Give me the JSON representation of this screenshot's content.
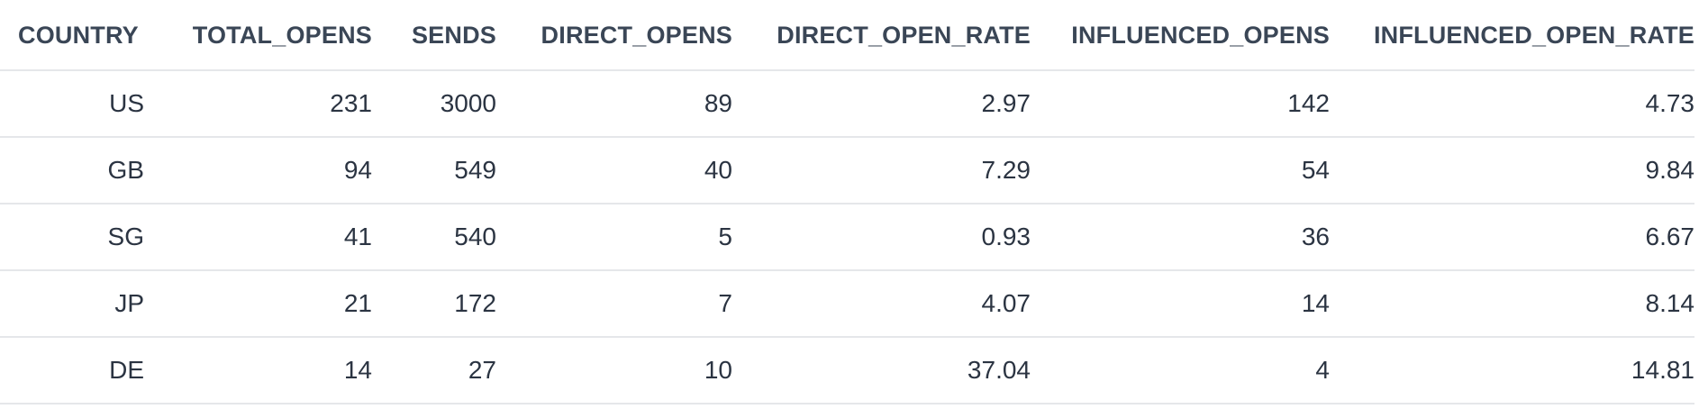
{
  "table": {
    "columns": [
      "COUNTRY",
      "TOTAL_OPENS",
      "SENDS",
      "DIRECT_OPENS",
      "DIRECT_OPEN_RATE",
      "INFLUENCED_OPENS",
      "INFLUENCED_OPEN_RATE"
    ],
    "rows": [
      [
        "US",
        "231",
        "3000",
        "89",
        "2.97",
        "142",
        "4.73"
      ],
      [
        "GB",
        "94",
        "549",
        "40",
        "7.29",
        "54",
        "9.84"
      ],
      [
        "SG",
        "41",
        "540",
        "5",
        "0.93",
        "36",
        "6.67"
      ],
      [
        "JP",
        "21",
        "172",
        "7",
        "4.07",
        "14",
        "8.14"
      ],
      [
        "DE",
        "14",
        "27",
        "10",
        "37.04",
        "4",
        "14.81"
      ]
    ]
  },
  "colors": {
    "header_text": "#3a4656",
    "cell_text": "#2b3442",
    "divider": "#e5e7ea",
    "background": "#ffffff"
  }
}
